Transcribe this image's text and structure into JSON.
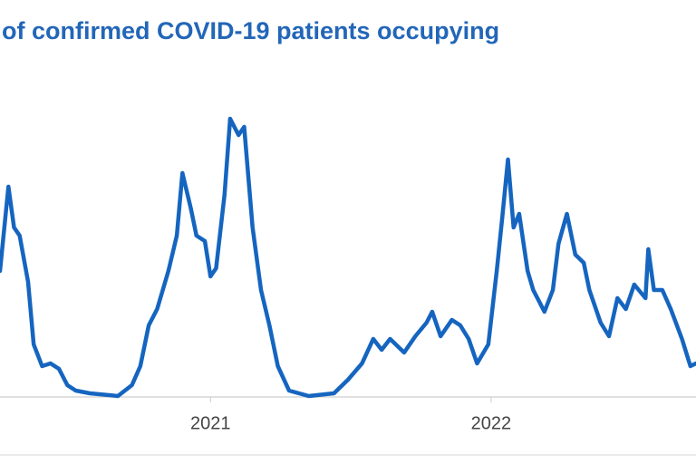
{
  "chart_data": {
    "type": "line",
    "title": "of confirmed COVID-19 patients occupying",
    "xlim": [
      2020.25,
      2022.73
    ],
    "xticks": [
      2021,
      2022
    ],
    "x": [
      2020.25,
      2020.28,
      2020.3,
      2020.32,
      2020.35,
      2020.37,
      2020.4,
      2020.43,
      2020.46,
      2020.49,
      2020.52,
      2020.57,
      2020.67,
      2020.72,
      2020.75,
      2020.78,
      2020.81,
      2020.85,
      2020.88,
      2020.9,
      2020.93,
      2020.95,
      2020.98,
      2021.0,
      2021.02,
      2021.05,
      2021.07,
      2021.1,
      2021.12,
      2021.15,
      2021.18,
      2021.21,
      2021.24,
      2021.28,
      2021.35,
      2021.44,
      2021.49,
      2021.54,
      2021.58,
      2021.61,
      2021.64,
      2021.69,
      2021.73,
      2021.77,
      2021.79,
      2021.82,
      2021.86,
      2021.89,
      2021.92,
      2021.95,
      2021.99,
      2022.02,
      2022.04,
      2022.06,
      2022.08,
      2022.1,
      2022.13,
      2022.15,
      2022.19,
      2022.22,
      2022.24,
      2022.27,
      2022.3,
      2022.33,
      2022.35,
      2022.39,
      2022.42,
      2022.45,
      2022.48,
      2022.51,
      2022.55,
      2022.56,
      2022.58,
      2022.61,
      2022.64,
      2022.68,
      2022.71,
      2022.73
    ],
    "series": [
      {
        "color": "#1565c0",
        "values": [
          46,
          77,
          62,
          59,
          42,
          19,
          11,
          12,
          10,
          4,
          2,
          1,
          0,
          4,
          11,
          26,
          32,
          46,
          59,
          82,
          69,
          59,
          57,
          44,
          47,
          74,
          102,
          96,
          99,
          62,
          39,
          26,
          11,
          2,
          0,
          1,
          6,
          12,
          21,
          17,
          21,
          16,
          22,
          27,
          31,
          22,
          28,
          26,
          21,
          12,
          19,
          46,
          66,
          87,
          62,
          67,
          46,
          39,
          31,
          39,
          56,
          67,
          52,
          49,
          39,
          27,
          22,
          36,
          32,
          41,
          36,
          54,
          39,
          39,
          32,
          21,
          11,
          12
        ]
      }
    ]
  }
}
